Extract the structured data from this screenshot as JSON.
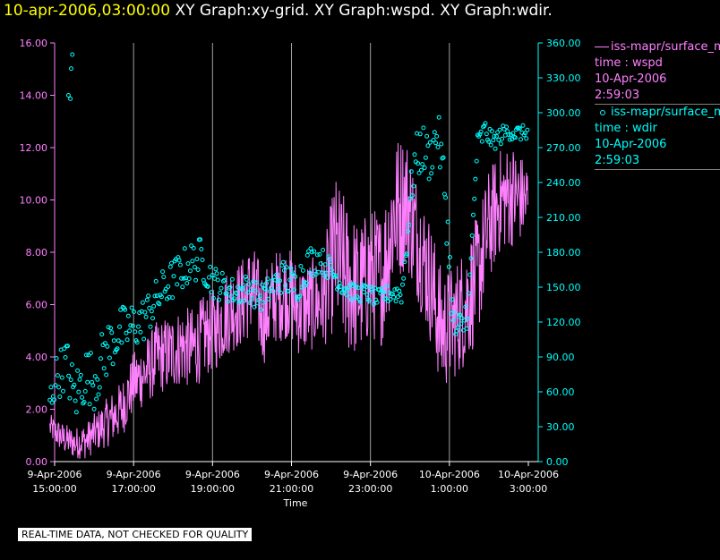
{
  "header": {
    "timestamp": "10-apr-2006,03:00:00",
    "graphs": "XY Graph:xy-grid.  XY Graph:wspd.  XY Graph:wdir."
  },
  "legend": {
    "series1": {
      "source": "iss-mapr/surface_m",
      "line1": "time : wspd",
      "line2": "10-Apr-2006",
      "line3": "2:59:03"
    },
    "series2": {
      "source": "iss-mapr/surface_m",
      "line1": "time : wdir",
      "line2": "10-Apr-2006",
      "line3": "2:59:03"
    }
  },
  "footer": {
    "quality": "REAL-TIME DATA, NOT CHECKED FOR QUALITY"
  },
  "colors": {
    "wspd": "#ff80ff",
    "wdir": "#00ffff",
    "grid": "#a0a0a0",
    "background": "#000000"
  },
  "chart_data": {
    "type": "line",
    "xlabel": "Time",
    "x_range": [
      "2006-04-09T14:30:00",
      "2006-04-10T03:05:00"
    ],
    "x_ticks": [
      {
        "line1": "9-Apr-2006",
        "line2": "15:00:00"
      },
      {
        "line1": "9-Apr-2006",
        "line2": "17:00:00"
      },
      {
        "line1": "9-Apr-2006",
        "line2": "19:00:00"
      },
      {
        "line1": "9-Apr-2006",
        "line2": "21:00:00"
      },
      {
        "line1": "9-Apr-2006",
        "line2": "23:00:00"
      },
      {
        "line1": "10-Apr-2006",
        "line2": "1:00:00"
      },
      {
        "line1": "10-Apr-2006",
        "line2": "3:00:00"
      }
    ],
    "x_tick_hours": [
      15,
      17,
      19,
      21,
      23,
      25,
      27
    ],
    "grid_x_hours": [
      17,
      19,
      21,
      23,
      25
    ],
    "y_left": {
      "ylim": [
        0,
        16
      ],
      "ticks": [
        "0.00",
        "2.00",
        "4.00",
        "6.00",
        "8.00",
        "10.00",
        "12.00",
        "14.00",
        "16.00"
      ],
      "color": "#ff80ff"
    },
    "y_right": {
      "ylim": [
        0,
        360
      ],
      "ticks": [
        "0.00",
        "30.00",
        "60.00",
        "90.00",
        "120.00",
        "150.00",
        "180.00",
        "210.00",
        "240.00",
        "270.00",
        "300.00",
        "330.00",
        "360.00"
      ],
      "color": "#00ffff"
    },
    "series": [
      {
        "name": "wspd",
        "style": "line",
        "axis": "left",
        "hours": [
          14.9,
          15.2,
          15.5,
          15.8,
          16.1,
          16.4,
          16.7,
          17.0,
          17.3,
          17.6,
          17.9,
          18.2,
          18.5,
          18.8,
          19.1,
          19.4,
          19.7,
          20.0,
          20.3,
          20.6,
          20.9,
          21.2,
          21.5,
          21.8,
          22.1,
          22.4,
          22.7,
          23.0,
          23.3,
          23.6,
          23.9,
          24.2,
          24.5,
          24.8,
          25.1,
          25.4,
          25.7,
          26.0,
          26.3,
          26.6,
          26.9
        ],
        "values": [
          1.3,
          0.9,
          0.7,
          0.8,
          1.2,
          1.6,
          2.0,
          3.0,
          3.4,
          4.0,
          4.1,
          4.4,
          4.3,
          4.8,
          5.1,
          5.8,
          6.0,
          6.6,
          5.5,
          6.3,
          6.5,
          5.8,
          6.0,
          6.1,
          8.0,
          7.0,
          6.5,
          7.2,
          7.0,
          9.5,
          10.0,
          8.5,
          7.0,
          5.0,
          5.3,
          6.0,
          7.0,
          9.0,
          10.0,
          10.2,
          10.0
        ],
        "spread": [
          0.5,
          0.6,
          0.6,
          0.7,
          0.8,
          1.0,
          1.1,
          1.2,
          1.3,
          1.4,
          1.5,
          1.5,
          1.6,
          1.6,
          1.6,
          1.7,
          1.7,
          1.8,
          1.8,
          1.8,
          1.8,
          1.8,
          1.8,
          1.8,
          3.0,
          3.0,
          2.6,
          2.6,
          2.6,
          3.0,
          2.6,
          2.4,
          2.4,
          2.4,
          2.2,
          2.4,
          2.4,
          2.2,
          2.0,
          2.0,
          1.6
        ]
      },
      {
        "name": "wdir",
        "style": "circles",
        "axis": "right",
        "hours": [
          14.85,
          15.0,
          15.3,
          15.5,
          15.8,
          16.0,
          16.3,
          16.6,
          16.9,
          17.2,
          17.5,
          17.8,
          18.1,
          18.4,
          18.7,
          19.0,
          19.3,
          19.6,
          19.9,
          20.2,
          20.5,
          20.8,
          21.1,
          21.4,
          21.7,
          22.0,
          22.3,
          22.6,
          22.9,
          23.2,
          23.5,
          23.8,
          24.1,
          24.3,
          24.5,
          24.7,
          24.9,
          25.1,
          25.3,
          25.5,
          25.7,
          25.9,
          26.1,
          26.3,
          26.5,
          26.7,
          26.9
        ],
        "values": [
          45,
          70,
          85,
          55,
          75,
          70,
          95,
          110,
          115,
          120,
          135,
          150,
          160,
          170,
          175,
          155,
          150,
          145,
          150,
          140,
          150,
          160,
          150,
          170,
          175,
          165,
          150,
          145,
          145,
          140,
          145,
          145,
          255,
          270,
          260,
          285,
          230,
          115,
          110,
          140,
          270,
          285,
          275,
          280,
          285,
          282,
          283
        ],
        "spread": [
          15,
          20,
          22,
          25,
          25,
          25,
          25,
          22,
          22,
          20,
          18,
          18,
          18,
          18,
          18,
          15,
          12,
          12,
          12,
          12,
          12,
          14,
          16,
          16,
          12,
          10,
          8,
          8,
          8,
          8,
          8,
          10,
          22,
          22,
          20,
          20,
          25,
          20,
          20,
          15,
          12,
          10,
          8,
          8,
          8,
          8,
          6
        ],
        "extra_points": [
          {
            "hour": 15.35,
            "value": 315
          },
          {
            "hour": 15.4,
            "value": 312
          },
          {
            "hour": 15.42,
            "value": 338
          },
          {
            "hour": 15.45,
            "value": 350
          }
        ]
      }
    ]
  }
}
